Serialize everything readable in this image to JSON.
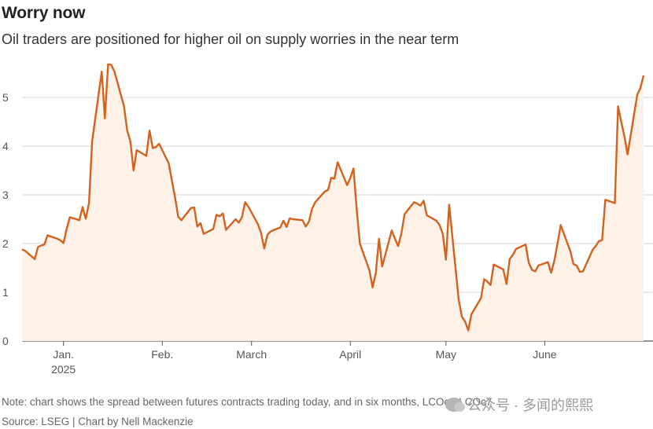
{
  "title": "Worry now",
  "subtitle": "Oil traders are positioned for higher oil on supply worries in the near term",
  "note": "Note: chart shows the spread between futures contracts trading today, and in six months, LCOc1-LCOc7",
  "source": "Source: LSEG | Chart by Nell Mackenzie",
  "watermark": "公众号 · 多闻的熙熙",
  "chart_data": {
    "type": "area",
    "title": "Worry now",
    "subtitle": "Oil traders are positioned for higher oil on supply worries in the near term",
    "xlabel": "",
    "ylabel": "",
    "ylim": [
      0,
      5.5
    ],
    "yticks": [
      0,
      1,
      2,
      3,
      4,
      5
    ],
    "grid": true,
    "line_color": "#d3621e",
    "fill_color": "#fdf1e8",
    "x_tick_labels": [
      {
        "label": "Jan.",
        "sub": "2025",
        "date": "2025-01-15"
      },
      {
        "label": "Feb.",
        "sub": "",
        "date": "2025-02-15"
      },
      {
        "label": "March",
        "sub": "",
        "date": "2025-03-15"
      },
      {
        "label": "April",
        "sub": "",
        "date": "2025-04-15"
      },
      {
        "label": "May",
        "sub": "",
        "date": "2025-05-15"
      },
      {
        "label": "June",
        "sub": "",
        "date": "2025-06-15"
      }
    ],
    "series": [
      {
        "values": [
          [
            "2025-01-02",
            1.88
          ],
          [
            "2025-01-03",
            1.85
          ],
          [
            "2025-01-06",
            1.68
          ],
          [
            "2025-01-07",
            1.93
          ],
          [
            "2025-01-08",
            1.96
          ],
          [
            "2025-01-09",
            1.98
          ],
          [
            "2025-01-10",
            2.17
          ],
          [
            "2025-01-13",
            2.1
          ],
          [
            "2025-01-14",
            2.07
          ],
          [
            "2025-01-15",
            2.01
          ],
          [
            "2025-01-16",
            2.3
          ],
          [
            "2025-01-17",
            2.54
          ],
          [
            "2025-01-20",
            2.48
          ],
          [
            "2025-01-21",
            2.75
          ],
          [
            "2025-01-22",
            2.51
          ],
          [
            "2025-01-23",
            2.83
          ],
          [
            "2025-01-24",
            4.1
          ],
          [
            "2025-01-27",
            5.53
          ],
          [
            "2025-01-28",
            4.57
          ],
          [
            "2025-01-29",
            5.68
          ],
          [
            "2025-01-30",
            5.67
          ],
          [
            "2025-01-31",
            5.53
          ],
          [
            "2025-02-03",
            4.82
          ],
          [
            "2025-02-04",
            4.32
          ],
          [
            "2025-02-05",
            4.1
          ],
          [
            "2025-02-06",
            3.5
          ],
          [
            "2025-02-07",
            3.92
          ],
          [
            "2025-02-10",
            3.8
          ],
          [
            "2025-02-11",
            4.32
          ],
          [
            "2025-02-12",
            3.96
          ],
          [
            "2025-02-13",
            3.98
          ],
          [
            "2025-02-14",
            4.05
          ],
          [
            "2025-02-17",
            3.65
          ],
          [
            "2025-02-18",
            3.3
          ],
          [
            "2025-02-19",
            2.95
          ],
          [
            "2025-02-20",
            2.55
          ],
          [
            "2025-02-21",
            2.48
          ],
          [
            "2025-02-24",
            2.73
          ],
          [
            "2025-02-25",
            2.74
          ],
          [
            "2025-02-26",
            2.35
          ],
          [
            "2025-02-27",
            2.42
          ],
          [
            "2025-02-28",
            2.2
          ],
          [
            "2025-03-03",
            2.3
          ],
          [
            "2025-03-04",
            2.59
          ],
          [
            "2025-03-05",
            2.56
          ],
          [
            "2025-03-06",
            2.62
          ],
          [
            "2025-03-07",
            2.28
          ],
          [
            "2025-03-10",
            2.5
          ],
          [
            "2025-03-11",
            2.43
          ],
          [
            "2025-03-12",
            2.54
          ],
          [
            "2025-03-13",
            2.85
          ],
          [
            "2025-03-14",
            2.76
          ],
          [
            "2025-03-17",
            2.4
          ],
          [
            "2025-03-18",
            2.22
          ],
          [
            "2025-03-19",
            1.9
          ],
          [
            "2025-03-20",
            2.18
          ],
          [
            "2025-03-21",
            2.25
          ],
          [
            "2025-03-24",
            2.33
          ],
          [
            "2025-03-25",
            2.47
          ],
          [
            "2025-03-26",
            2.34
          ],
          [
            "2025-03-27",
            2.52
          ],
          [
            "2025-03-28",
            2.5
          ],
          [
            "2025-03-31",
            2.48
          ],
          [
            "2025-04-01",
            2.35
          ],
          [
            "2025-04-02",
            2.45
          ],
          [
            "2025-04-03",
            2.72
          ],
          [
            "2025-04-04",
            2.85
          ],
          [
            "2025-04-07",
            3.07
          ],
          [
            "2025-04-08",
            3.1
          ],
          [
            "2025-04-09",
            3.35
          ],
          [
            "2025-04-10",
            3.33
          ],
          [
            "2025-04-11",
            3.67
          ],
          [
            "2025-04-14",
            3.2
          ],
          [
            "2025-04-15",
            3.35
          ],
          [
            "2025-04-16",
            3.54
          ],
          [
            "2025-04-17",
            2.7
          ],
          [
            "2025-04-18",
            2.0
          ],
          [
            "2025-04-21",
            1.45
          ],
          [
            "2025-04-22",
            1.1
          ],
          [
            "2025-04-23",
            1.4
          ],
          [
            "2025-04-24",
            2.1
          ],
          [
            "2025-04-25",
            1.53
          ],
          [
            "2025-04-28",
            2.27
          ],
          [
            "2025-04-29",
            2.1
          ],
          [
            "2025-04-30",
            1.95
          ],
          [
            "2025-05-01",
            2.2
          ],
          [
            "2025-05-02",
            2.6
          ],
          [
            "2025-05-05",
            2.85
          ],
          [
            "2025-05-06",
            2.82
          ],
          [
            "2025-05-07",
            2.78
          ],
          [
            "2025-05-08",
            2.88
          ],
          [
            "2025-05-09",
            2.58
          ],
          [
            "2025-05-12",
            2.47
          ],
          [
            "2025-05-13",
            2.38
          ],
          [
            "2025-05-14",
            2.2
          ],
          [
            "2025-05-15",
            1.67
          ],
          [
            "2025-05-16",
            2.8
          ],
          [
            "2025-05-19",
            0.85
          ],
          [
            "2025-05-20",
            0.5
          ],
          [
            "2025-05-21",
            0.4
          ],
          [
            "2025-05-22",
            0.22
          ],
          [
            "2025-05-23",
            0.55
          ],
          [
            "2025-05-26",
            0.88
          ],
          [
            "2025-05-27",
            1.27
          ],
          [
            "2025-05-28",
            1.22
          ],
          [
            "2025-05-29",
            1.15
          ],
          [
            "2025-05-30",
            1.57
          ],
          [
            "2025-06-02",
            1.47
          ],
          [
            "2025-06-03",
            1.17
          ],
          [
            "2025-06-04",
            1.68
          ],
          [
            "2025-06-05",
            1.77
          ],
          [
            "2025-06-06",
            1.89
          ],
          [
            "2025-06-09",
            1.98
          ],
          [
            "2025-06-10",
            1.6
          ],
          [
            "2025-06-11",
            1.46
          ],
          [
            "2025-06-12",
            1.43
          ],
          [
            "2025-06-13",
            1.55
          ],
          [
            "2025-06-16",
            1.62
          ],
          [
            "2025-06-17",
            1.4
          ],
          [
            "2025-06-18",
            1.65
          ],
          [
            "2025-06-19",
            2.0
          ],
          [
            "2025-06-20",
            2.38
          ],
          [
            "2025-06-23",
            1.85
          ],
          [
            "2025-06-24",
            1.58
          ],
          [
            "2025-06-25",
            1.55
          ],
          [
            "2025-06-26",
            1.42
          ],
          [
            "2025-06-27",
            1.43
          ],
          [
            "2025-06-30",
            1.87
          ],
          [
            "2025-07-01",
            1.95
          ],
          [
            "2025-07-02",
            2.05
          ],
          [
            "2025-07-03",
            2.07
          ],
          [
            "2025-07-04",
            2.9
          ],
          [
            "2025-07-07",
            2.83
          ],
          [
            "2025-07-08",
            4.82
          ],
          [
            "2025-07-09",
            4.5
          ],
          [
            "2025-07-10",
            4.2
          ],
          [
            "2025-07-11",
            3.83
          ],
          [
            "2025-07-14",
            5.05
          ],
          [
            "2025-07-15",
            5.19
          ],
          [
            "2025-07-16",
            5.45
          ]
        ]
      }
    ]
  }
}
